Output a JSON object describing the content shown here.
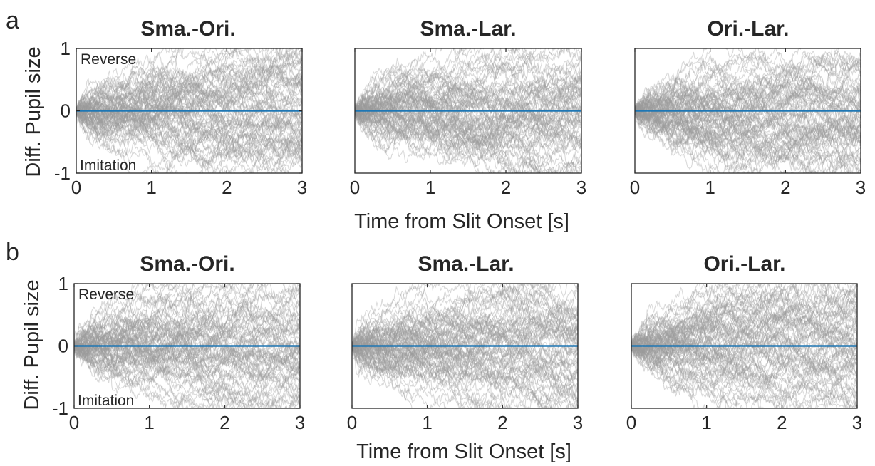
{
  "figure": {
    "ylabel": "Diff. Pupil size",
    "xlabel": "Time from Slit Onset [s]",
    "annotations": {
      "top": "Reverse",
      "bottom": "Imitation"
    },
    "colors": {
      "traces": "#9a9a9a",
      "baseline": "#1f77b4",
      "axes": "#262626"
    }
  },
  "panels": [
    {
      "letter": "a",
      "titles": [
        "Sma.-Ori.",
        "Sma.-Lar.",
        "Ori.-Lar."
      ]
    },
    {
      "letter": "b",
      "titles": [
        "Sma.-Ori.",
        "Sma.-Lar.",
        "Ori.-Lar."
      ]
    }
  ],
  "chart_data": [
    {
      "type": "line",
      "panel": "a",
      "title": "Sma.-Ori.",
      "xlabel": "",
      "ylabel": "Diff. Pupil size",
      "xlim": [
        0,
        3
      ],
      "ylim": [
        -1,
        1
      ],
      "xticks": [
        "0",
        "1",
        "2",
        "3"
      ],
      "yticks": [
        "-1",
        "0",
        "1"
      ],
      "annotations": [
        "Reverse",
        "Imitation"
      ],
      "n_traces": 80,
      "trace_spread_at_3s": 0.6,
      "series": [
        {
          "name": "",
          "x": [
            0,
            3
          ],
          "values": [
            0,
            0
          ]
        }
      ]
    },
    {
      "type": "line",
      "panel": "a",
      "title": "Sma.-Lar.",
      "xlabel": "",
      "ylabel": "",
      "xlim": [
        0,
        3
      ],
      "ylim": [
        -1,
        1
      ],
      "xticks": [
        "0",
        "1",
        "2",
        "3"
      ],
      "yticks": [],
      "n_traces": 80,
      "trace_spread_at_3s": 0.6,
      "series": [
        {
          "name": "",
          "x": [
            0,
            3
          ],
          "values": [
            0,
            0
          ]
        }
      ]
    },
    {
      "type": "line",
      "panel": "a",
      "title": "Ori.-Lar.",
      "xlabel": "",
      "ylabel": "",
      "xlim": [
        0,
        3
      ],
      "ylim": [
        -1,
        1
      ],
      "xticks": [
        "0",
        "1",
        "2",
        "3"
      ],
      "yticks": [],
      "n_traces": 80,
      "trace_spread_at_3s": 0.6,
      "series": [
        {
          "name": "",
          "x": [
            0,
            3
          ],
          "values": [
            0,
            0
          ]
        }
      ]
    },
    {
      "type": "line",
      "panel": "b",
      "title": "Sma.-Ori.",
      "xlabel": "",
      "ylabel": "Diff. Pupil size",
      "xlim": [
        0,
        3
      ],
      "ylim": [
        -1,
        1
      ],
      "xticks": [
        "0",
        "1",
        "2",
        "3"
      ],
      "yticks": [
        "-1",
        "0",
        "1"
      ],
      "annotations": [
        "Reverse",
        "Imitation"
      ],
      "n_traces": 80,
      "trace_spread_at_3s": 0.6,
      "series": [
        {
          "name": "",
          "x": [
            0,
            3
          ],
          "values": [
            0,
            0
          ]
        }
      ]
    },
    {
      "type": "line",
      "panel": "b",
      "title": "Sma.-Lar.",
      "xlabel": "",
      "ylabel": "",
      "xlim": [
        0,
        3
      ],
      "ylim": [
        -1,
        1
      ],
      "xticks": [
        "0",
        "1",
        "2",
        "3"
      ],
      "yticks": [],
      "n_traces": 80,
      "trace_spread_at_3s": 0.6,
      "series": [
        {
          "name": "",
          "x": [
            0,
            3
          ],
          "values": [
            0,
            0
          ]
        }
      ]
    },
    {
      "type": "line",
      "panel": "b",
      "title": "Ori.-Lar.",
      "xlabel": "Time from Slit Onset [s]",
      "ylabel": "",
      "xlim": [
        0,
        3
      ],
      "ylim": [
        -1,
        1
      ],
      "xticks": [
        "0",
        "1",
        "2",
        "3"
      ],
      "yticks": [],
      "n_traces": 80,
      "trace_spread_at_3s": 0.6,
      "series": [
        {
          "name": "",
          "x": [
            0,
            3
          ],
          "values": [
            0,
            0
          ]
        }
      ]
    }
  ]
}
